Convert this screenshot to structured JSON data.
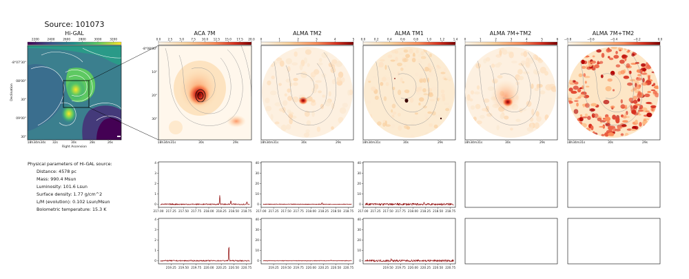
{
  "title": "Source: 101073",
  "params": {
    "heading": "Physical parameters of Hi-GAL source:",
    "lines": [
      "Distance: 4578 pc",
      "Mass: 990.4 Msun",
      "Luminosity: 101.6 Lsun",
      "Surface density: 1.77 g/cm^2",
      "L/M (evolution): 0.102 Lsun/Msun",
      "Bolometric temperature: 15.3 K"
    ]
  },
  "colors": {
    "viridis": [
      "#440154",
      "#3b528b",
      "#21918c",
      "#5ec962",
      "#fde725"
    ],
    "ylorrd": [
      "#fff7ec",
      "#fdd49e",
      "#fc8d59",
      "#d7301f",
      "#7f0000"
    ],
    "spectrum_line": "#8b0000",
    "contour": "#9a9a9a",
    "higal_contour": "#ffffff"
  },
  "chart_data": [
    {
      "type": "heatmap",
      "title": "Hi-GAL",
      "colormap": "viridis",
      "colorbar_ticks": [
        "2200",
        "2400",
        "2600",
        "2800",
        "3000",
        "3200"
      ],
      "ra_ticks": [
        "18h34m34s",
        "32s",
        "30s",
        "28s",
        "26s"
      ],
      "dec_ticks": [
        "-8°07'30\"",
        "08'00\"",
        "30\"",
        "09'00\"",
        "30\""
      ],
      "xlabel": "Right Ascension",
      "ylabel": "Declination"
    },
    {
      "type": "heatmap",
      "title": "ACA 7M",
      "colormap": "YlOrRd",
      "colorbar_ticks": [
        "0.0",
        "2.5",
        "5.0",
        "7.5",
        "10.0",
        "12.5",
        "15.0",
        "17.5",
        "20.0"
      ],
      "ra_ticks": [
        "18h34m31s",
        "30s",
        "29s"
      ],
      "dec_ticks": [
        "-8°08'00\"",
        "10\"",
        "20\"",
        "30\""
      ]
    },
    {
      "type": "heatmap",
      "title": "ALMA TM2",
      "colormap": "YlOrRd",
      "colorbar_ticks": [
        "0",
        "1",
        "2",
        "3",
        "4",
        "5"
      ],
      "ra_ticks": [
        "18h34m31s",
        "30s",
        "29s"
      ]
    },
    {
      "type": "heatmap",
      "title": "ALMA TM1",
      "colormap": "YlOrRd",
      "colorbar_ticks": [
        "0.0",
        "0.2",
        "0.4",
        "0.6",
        "0.8",
        "1.0",
        "1.2",
        "1.4"
      ],
      "ra_ticks": [
        "18h34m31s",
        "30s",
        "29s"
      ]
    },
    {
      "type": "heatmap",
      "title": "ALMA 7M+TM2",
      "colormap": "YlOrRd",
      "colorbar_ticks": [
        "0",
        "1",
        "2",
        "3",
        "4",
        "5",
        "6"
      ],
      "ra_ticks": [
        "18h34m31s",
        "30s",
        "29s"
      ]
    },
    {
      "type": "heatmap",
      "title": "ALMA 7M+TM2",
      "colormap": "YlOrRd",
      "colorbar_ticks": [
        "−0.8",
        "−0.6",
        "−0.4",
        "−0.2",
        "0.0"
      ],
      "ra_ticks": [
        "18h34m31s",
        "30s",
        "29s"
      ]
    },
    {
      "type": "line",
      "x_ticks": [
        "217.00",
        "217.25",
        "217.50",
        "217.75",
        "218.00",
        "218.25",
        "218.50",
        "218.75"
      ],
      "xlim": [
        217.0,
        218.85
      ],
      "y_ticks": [
        "0",
        "1",
        "2",
        "3",
        "4"
      ],
      "ylim": [
        -0.3,
        4.1
      ],
      "noise": 0.05,
      "peaks": [
        [
          218.22,
          0.9
        ],
        [
          218.44,
          0.35
        ],
        [
          218.76,
          0.25
        ]
      ]
    },
    {
      "type": "line",
      "x_ticks": [
        "217.00",
        "217.25",
        "217.50",
        "217.75",
        "218.00",
        "218.25",
        "218.50",
        "218.75"
      ],
      "xlim": [
        217.0,
        218.85
      ],
      "y_ticks": [
        "0",
        "10",
        "20",
        "30",
        "40"
      ],
      "ylim": [
        -3,
        41
      ],
      "noise": 0.3,
      "peaks": [
        [
          218.22,
          1.6
        ]
      ]
    },
    {
      "type": "line",
      "x_ticks": [
        "217.00",
        "217.25",
        "217.50",
        "217.75",
        "218.00",
        "218.25",
        "218.50",
        "218.75"
      ],
      "xlim": [
        217.0,
        218.85
      ],
      "y_ticks": [
        "0",
        "10",
        "20",
        "30",
        "40"
      ],
      "ylim": [
        -3,
        41
      ],
      "noise": 0.9,
      "peaks": [
        [
          218.22,
          1.5
        ]
      ]
    },
    {
      "type": "line",
      "x_ticks": [
        "219.25",
        "219.50",
        "219.75",
        "220.00",
        "220.25",
        "220.50",
        "220.75"
      ],
      "xlim": [
        219.0,
        220.85
      ],
      "y_ticks": [
        "0",
        "1",
        "2",
        "3",
        "4"
      ],
      "ylim": [
        -0.3,
        4.1
      ],
      "noise": 0.05,
      "peaks": [
        [
          220.4,
          1.5
        ]
      ]
    },
    {
      "type": "line",
      "x_ticks": [
        "219.25",
        "219.50",
        "219.75",
        "220.00",
        "220.25",
        "220.50",
        "220.75"
      ],
      "xlim": [
        219.0,
        220.85
      ],
      "y_ticks": [
        "0",
        "10",
        "20",
        "30",
        "40"
      ],
      "ylim": [
        -3,
        41
      ],
      "noise": 0.3,
      "peaks": [
        [
          220.4,
          0.8
        ]
      ]
    },
    {
      "type": "line",
      "x_ticks": [
        "219.50",
        "219.75",
        "220.00",
        "220.25",
        "220.50",
        "220.75"
      ],
      "xlim": [
        219.0,
        220.85
      ],
      "y_ticks": [
        "0",
        "10",
        "20",
        "30",
        "40"
      ],
      "ylim": [
        -3,
        41
      ],
      "noise": 0.9,
      "peaks": [
        [
          219.56,
          1.6
        ]
      ]
    }
  ]
}
